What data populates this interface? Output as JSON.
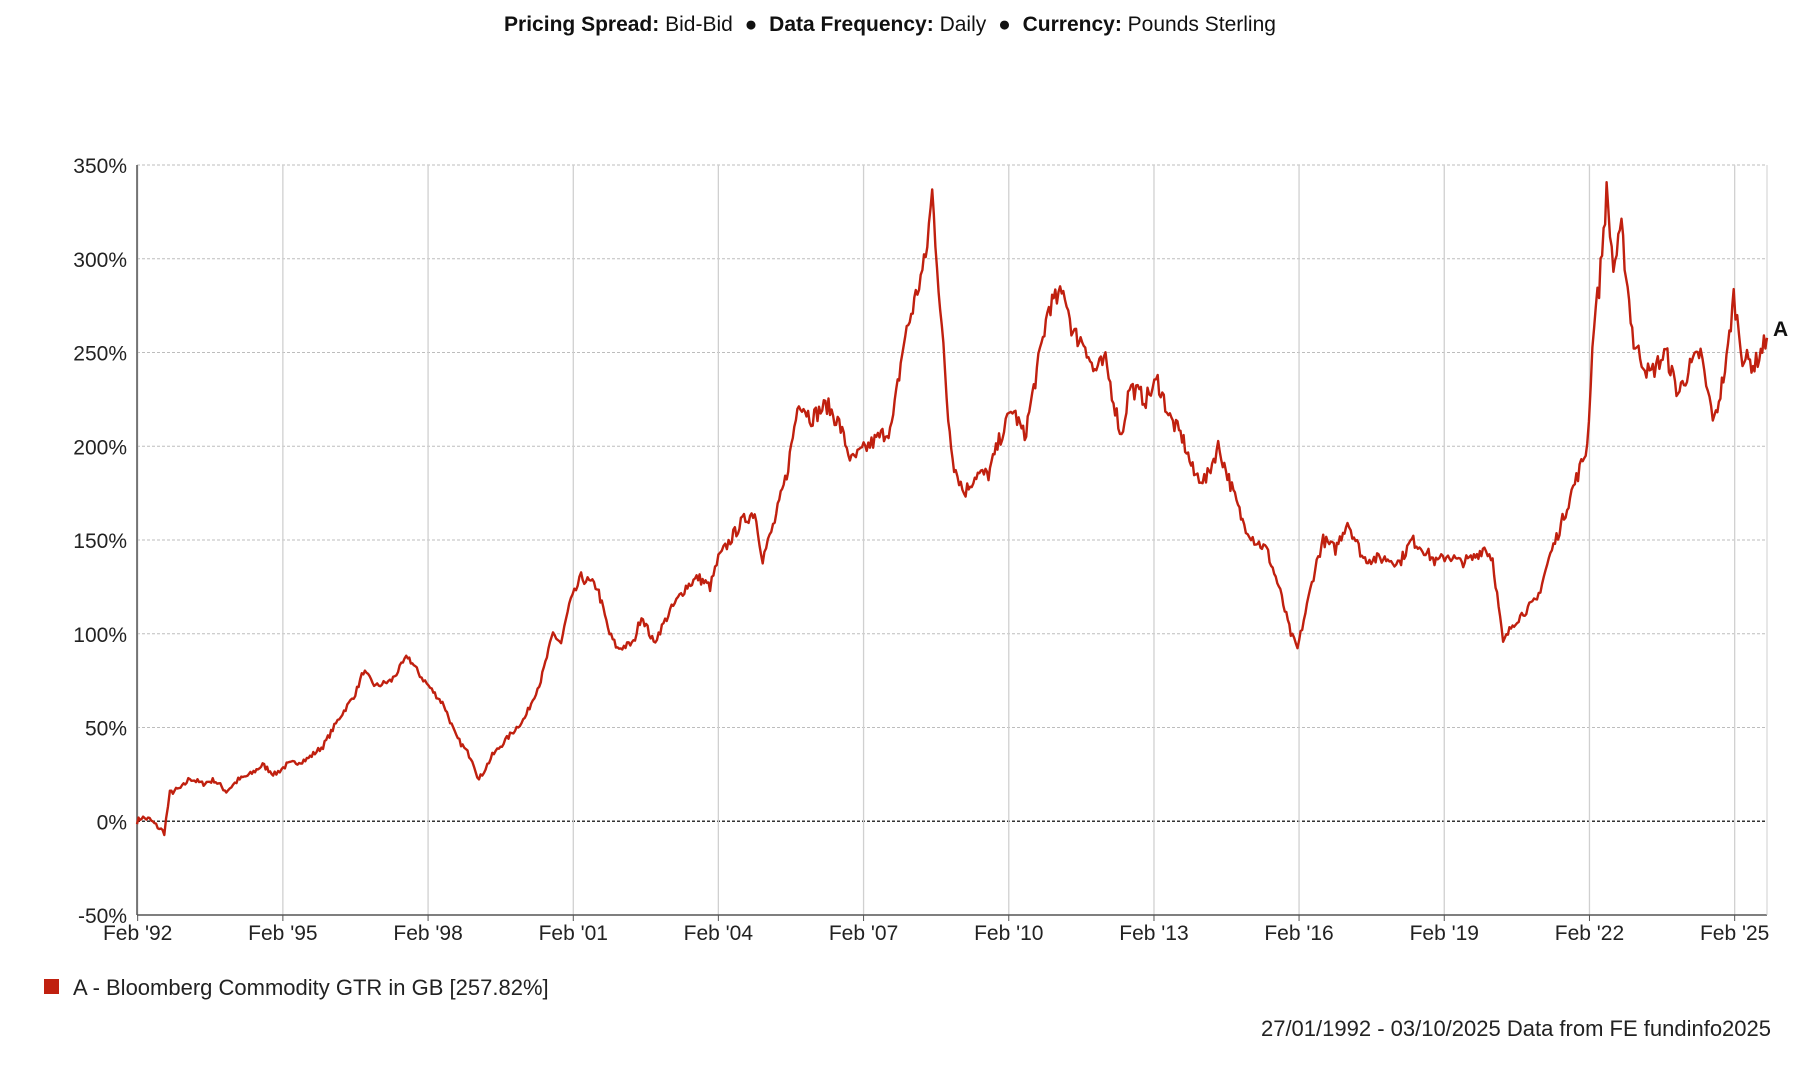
{
  "header": {
    "pricing_spread_label": "Pricing Spread:",
    "pricing_spread_value": "Bid-Bid",
    "data_frequency_label": "Data Frequency:",
    "data_frequency_value": "Daily",
    "currency_label": "Currency:",
    "currency_value": "Pounds Sterling",
    "separator": "●"
  },
  "legend": {
    "text": "A - Bloomberg Commodity GTR in GB [257.82%]",
    "color": "#c0200f"
  },
  "footer": {
    "text": "27/01/1992 - 03/10/2025 Data from FE fundinfo2025"
  },
  "chart_data": {
    "type": "line",
    "title": "",
    "xlabel": "",
    "ylabel": "",
    "x_range": [
      "1992-01-27",
      "2025-10-03"
    ],
    "ylim": [
      -50,
      350
    ],
    "y_ticks": [
      350,
      300,
      250,
      200,
      150,
      100,
      50,
      0,
      -50
    ],
    "y_tick_labels": [
      "350%",
      "300%",
      "250%",
      "200%",
      "150%",
      "100%",
      "50%",
      "0%",
      "-50%"
    ],
    "x_ticks": [
      "1992-02-01",
      "1995-02-01",
      "1998-02-01",
      "2001-02-01",
      "2004-02-01",
      "2007-02-01",
      "2010-02-01",
      "2013-02-01",
      "2016-02-01",
      "2019-02-01",
      "2022-02-01",
      "2025-02-01"
    ],
    "x_tick_labels": [
      "Feb '92",
      "Feb '95",
      "Feb '98",
      "Feb '01",
      "Feb '04",
      "Feb '07",
      "Feb '10",
      "Feb '13",
      "Feb '16",
      "Feb '19",
      "Feb '22",
      "Feb '25"
    ],
    "grid": true,
    "zero_line": true,
    "series": [
      {
        "name": "A - Bloomberg Commodity GTR in GB",
        "end_label": "A",
        "color": "#c0200f",
        "points": [
          [
            "1992-01-27",
            0
          ],
          [
            "1992-03-01",
            2
          ],
          [
            "1992-05-01",
            1
          ],
          [
            "1992-07-01",
            -3
          ],
          [
            "1992-08-20",
            -6
          ],
          [
            "1992-10-01",
            15
          ],
          [
            "1993-01-01",
            18
          ],
          [
            "1993-03-01",
            23
          ],
          [
            "1993-06-01",
            20
          ],
          [
            "1993-09-01",
            22
          ],
          [
            "1993-12-01",
            16
          ],
          [
            "1994-03-01",
            22
          ],
          [
            "1994-06-01",
            25
          ],
          [
            "1994-09-01",
            30
          ],
          [
            "1994-12-01",
            25
          ],
          [
            "1995-03-01",
            30
          ],
          [
            "1995-08-01",
            33
          ],
          [
            "1995-12-01",
            40
          ],
          [
            "1996-04-01",
            55
          ],
          [
            "1996-08-01",
            68
          ],
          [
            "1996-10-01",
            80
          ],
          [
            "1997-01-01",
            72
          ],
          [
            "1997-05-01",
            75
          ],
          [
            "1997-09-01",
            88
          ],
          [
            "1997-12-01",
            78
          ],
          [
            "1998-03-01",
            70
          ],
          [
            "1998-06-01",
            62
          ],
          [
            "1998-09-01",
            45
          ],
          [
            "1999-01-01",
            33
          ],
          [
            "1999-02-20",
            22
          ],
          [
            "1999-06-01",
            35
          ],
          [
            "1999-10-01",
            45
          ],
          [
            "2000-02-01",
            55
          ],
          [
            "2000-06-01",
            75
          ],
          [
            "2000-09-01",
            100
          ],
          [
            "2000-11-01",
            95
          ],
          [
            "2001-01-01",
            115
          ],
          [
            "2001-04-01",
            130
          ],
          [
            "2001-08-01",
            125
          ],
          [
            "2001-11-01",
            100
          ],
          [
            "2002-01-01",
            92
          ],
          [
            "2002-05-01",
            95
          ],
          [
            "2002-07-01",
            110
          ],
          [
            "2002-10-01",
            95
          ],
          [
            "2003-02-01",
            112
          ],
          [
            "2003-06-01",
            125
          ],
          [
            "2003-09-01",
            130
          ],
          [
            "2003-12-01",
            125
          ],
          [
            "2004-02-01",
            140
          ],
          [
            "2004-05-01",
            150
          ],
          [
            "2004-08-01",
            160
          ],
          [
            "2004-11-01",
            165
          ],
          [
            "2005-01-01",
            140
          ],
          [
            "2005-04-01",
            160
          ],
          [
            "2005-07-01",
            185
          ],
          [
            "2005-10-01",
            225
          ],
          [
            "2006-01-01",
            215
          ],
          [
            "2006-05-01",
            222
          ],
          [
            "2006-08-01",
            212
          ],
          [
            "2006-11-01",
            192
          ],
          [
            "2007-02-01",
            198
          ],
          [
            "2007-06-01",
            205
          ],
          [
            "2007-09-01",
            210
          ],
          [
            "2007-12-01",
            255
          ],
          [
            "2008-03-01",
            280
          ],
          [
            "2008-05-15",
            300
          ],
          [
            "2008-07-03",
            335
          ],
          [
            "2008-09-01",
            275
          ],
          [
            "2008-11-01",
            215
          ],
          [
            "2008-12-15",
            190
          ],
          [
            "2009-03-01",
            175
          ],
          [
            "2009-06-01",
            185
          ],
          [
            "2009-09-01",
            185
          ],
          [
            "2009-12-01",
            205
          ],
          [
            "2010-03-01",
            220
          ],
          [
            "2010-06-01",
            205
          ],
          [
            "2010-09-01",
            240
          ],
          [
            "2010-12-01",
            275
          ],
          [
            "2011-04-01",
            282
          ],
          [
            "2011-06-01",
            260
          ],
          [
            "2011-09-01",
            255
          ],
          [
            "2011-11-01",
            240
          ],
          [
            "2012-02-01",
            245
          ],
          [
            "2012-06-01",
            205
          ],
          [
            "2012-08-01",
            232
          ],
          [
            "2012-12-01",
            225
          ],
          [
            "2013-03-01",
            235
          ],
          [
            "2013-06-01",
            215
          ],
          [
            "2013-09-01",
            205
          ],
          [
            "2013-12-01",
            185
          ],
          [
            "2014-03-01",
            182
          ],
          [
            "2014-06-01",
            200
          ],
          [
            "2014-09-01",
            180
          ],
          [
            "2014-12-01",
            160
          ],
          [
            "2015-03-01",
            150
          ],
          [
            "2015-06-01",
            145
          ],
          [
            "2015-09-01",
            125
          ],
          [
            "2015-12-01",
            100
          ],
          [
            "2016-01-20",
            92
          ],
          [
            "2016-04-01",
            115
          ],
          [
            "2016-06-01",
            135
          ],
          [
            "2016-08-01",
            150
          ],
          [
            "2016-11-01",
            145
          ],
          [
            "2017-02-01",
            160
          ],
          [
            "2017-06-01",
            140
          ],
          [
            "2017-09-01",
            140
          ],
          [
            "2017-12-01",
            140
          ],
          [
            "2018-03-01",
            138
          ],
          [
            "2018-06-01",
            150
          ],
          [
            "2018-09-01",
            145
          ],
          [
            "2018-12-01",
            138
          ],
          [
            "2019-03-01",
            142
          ],
          [
            "2019-06-01",
            138
          ],
          [
            "2019-09-01",
            140
          ],
          [
            "2019-12-01",
            146
          ],
          [
            "2020-02-01",
            140
          ],
          [
            "2020-04-20",
            95
          ],
          [
            "2020-07-01",
            105
          ],
          [
            "2020-10-01",
            112
          ],
          [
            "2021-01-01",
            118
          ],
          [
            "2021-04-01",
            140
          ],
          [
            "2021-07-01",
            158
          ],
          [
            "2021-10-01",
            178
          ],
          [
            "2021-12-01",
            190
          ],
          [
            "2022-01-15",
            200
          ],
          [
            "2022-03-08",
            268
          ],
          [
            "2022-04-15",
            285
          ],
          [
            "2022-06-10",
            335
          ],
          [
            "2022-08-01",
            295
          ],
          [
            "2022-10-01",
            315
          ],
          [
            "2023-01-01",
            255
          ],
          [
            "2023-05-01",
            238
          ],
          [
            "2023-09-01",
            250
          ],
          [
            "2023-12-01",
            228
          ],
          [
            "2024-03-01",
            242
          ],
          [
            "2024-05-20",
            250
          ],
          [
            "2024-07-01",
            232
          ],
          [
            "2024-09-01",
            213
          ],
          [
            "2024-12-01",
            245
          ],
          [
            "2025-01-25",
            280
          ],
          [
            "2025-04-01",
            248
          ],
          [
            "2025-07-01",
            243
          ],
          [
            "2025-10-03",
            257.82
          ]
        ]
      }
    ]
  }
}
